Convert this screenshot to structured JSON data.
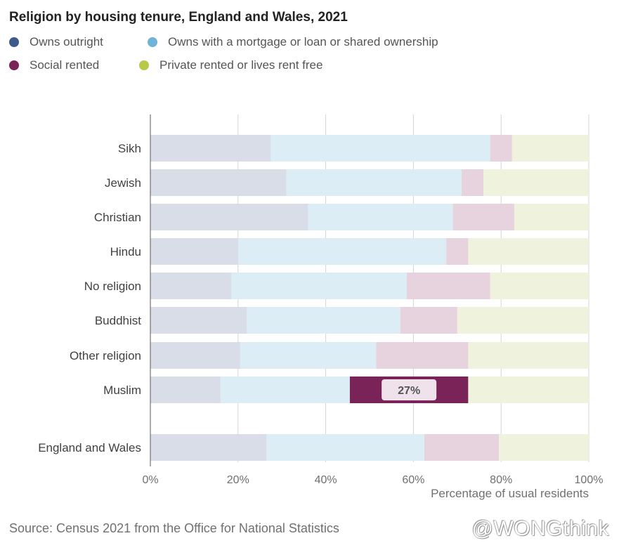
{
  "chart_data": {
    "type": "bar",
    "orientation": "horizontal",
    "stacked": true,
    "title": "Religion by housing tenure, England and Wales, 2021",
    "xlabel": "Percentage of usual residents",
    "ylabel": "",
    "xlim": [
      0,
      100
    ],
    "x_ticks": [
      "0%",
      "20%",
      "40%",
      "60%",
      "80%",
      "100%"
    ],
    "categories": [
      "Sikh",
      "Jewish",
      "Christian",
      "Hindu",
      "No religion",
      "Buddhist",
      "Other religion",
      "Muslim",
      "England and Wales"
    ],
    "series": [
      {
        "name": "Owns outright",
        "color": "#3c5a8a",
        "faded_color": "#d9dde8",
        "values": [
          27.5,
          31,
          36,
          20,
          18.5,
          22,
          20.5,
          16,
          26.5
        ]
      },
      {
        "name": "Owns with a mortgage or loan or shared ownership",
        "color": "#6fb3d8",
        "faded_color": "#dcedf5",
        "values": [
          50,
          40,
          33,
          47.5,
          40,
          35,
          31,
          29.5,
          36
        ]
      },
      {
        "name": "Social rented",
        "color": "#7a2358",
        "faded_color": "#e6d3dd",
        "values": [
          5,
          5,
          14,
          5,
          19,
          13,
          21,
          27,
          17
        ]
      },
      {
        "name": "Private rented or lives rent free",
        "color": "#b9c84a",
        "faded_color": "#eff2dd",
        "values": [
          17.5,
          24,
          17,
          27.5,
          22.5,
          30,
          27.5,
          27.5,
          20.5
        ]
      }
    ],
    "highlight": {
      "category": "Muslim",
      "series": "Social rented",
      "label": "27%"
    },
    "grid": true,
    "legend_position": "top-left"
  },
  "source": "Source: Census 2021 from the Office for National Statistics",
  "watermark": "@WONGthink"
}
